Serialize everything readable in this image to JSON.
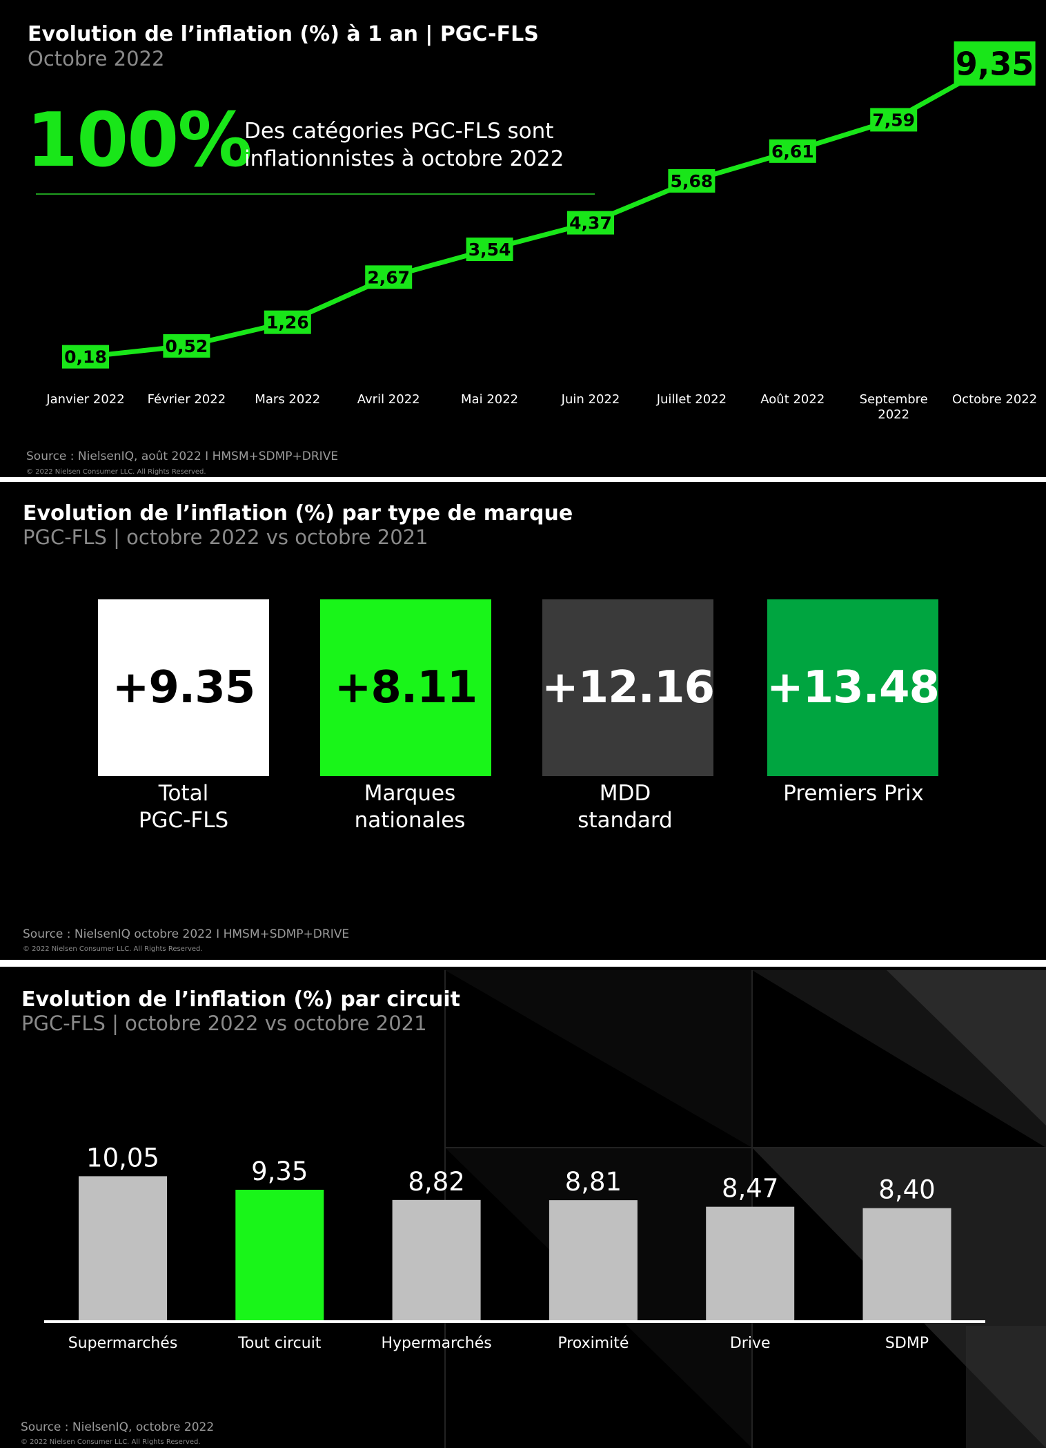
{
  "panel1": {
    "title": "Evolution de l’inflation (%) à 1 an | PGC-FLS",
    "subtitle": "Octobre 2022",
    "headline_value": "100%",
    "headline_text": "Des catégories PGC-FLS sont inflationnistes à octobre 2022",
    "source": "Source : NielsenIQ, août 2022 I HMSM+SDMP+DRIVE",
    "copyright": "© 2022 Nielsen Consumer LLC. All Rights Reserved.",
    "colors": {
      "line": "#19e619",
      "label_bg": "#19e619",
      "label_text": "#000000"
    }
  },
  "panel2": {
    "title": "Evolution de l’inflation (%) par type de marque",
    "subtitle": "PGC-FLS | octobre 2022 vs octobre 2021",
    "tiles": [
      {
        "value": "+9.35",
        "label": "Total\nPGC-FLS",
        "bg": "#ffffff",
        "fg": "#000000"
      },
      {
        "value": "+8.11",
        "label": "Marques\nnationales",
        "bg": "#19f519",
        "fg": "#000000"
      },
      {
        "value": "+12.16",
        "label": "MDD\nstandard",
        "bg": "#3a3a3a",
        "fg": "#ffffff"
      },
      {
        "value": "+13.48",
        "label": "Premiers Prix",
        "bg": "#00a540",
        "fg": "#ffffff"
      }
    ],
    "source": "Source : NielsenIQ octobre 2022 I HMSM+SDMP+DRIVE",
    "copyright": "© 2022 Nielsen Consumer LLC. All Rights Reserved."
  },
  "panel3": {
    "title": "Evolution de l’inflation (%) par circuit",
    "subtitle": "PGC-FLS | octobre 2022 vs octobre 2021",
    "source": "Source : NielsenIQ, octobre 2022",
    "copyright": "© 2022 Nielsen Consumer LLC. All Rights Reserved.",
    "colors": {
      "bar": "#c0c0c0",
      "highlight": "#19f519",
      "axis": "#ffffff"
    }
  },
  "chart_data": [
    {
      "type": "line",
      "title": "Evolution de l’inflation (%) à 1 an | PGC-FLS",
      "categories": [
        "Janvier 2022",
        "Février 2022",
        "Mars 2022",
        "Avril 2022",
        "Mai 2022",
        "Juin 2022",
        "Juillet 2022",
        "Août 2022",
        "Septembre 2022",
        "Octobre 2022"
      ],
      "values": [
        0.18,
        0.52,
        1.26,
        2.67,
        3.54,
        4.37,
        5.68,
        6.61,
        7.59,
        9.35
      ],
      "labels": [
        "0,18",
        "0,52",
        "1,26",
        "2,67",
        "3,54",
        "4,37",
        "5,68",
        "6,61",
        "7,59",
        "9,35"
      ],
      "ylim": [
        0,
        10
      ]
    },
    {
      "type": "bar",
      "title": "Evolution de l’inflation (%) par circuit",
      "categories": [
        "Supermarchés",
        "Tout circuit",
        "Hypermarchés",
        "Proximité",
        "Drive",
        "SDMP"
      ],
      "values": [
        10.05,
        9.35,
        8.82,
        8.81,
        8.47,
        8.4
      ],
      "labels": [
        "10,05",
        "9,35",
        "8,82",
        "8,81",
        "8,47",
        "8,40"
      ],
      "highlight_index": 1,
      "ylim": [
        0,
        10.5
      ]
    }
  ]
}
